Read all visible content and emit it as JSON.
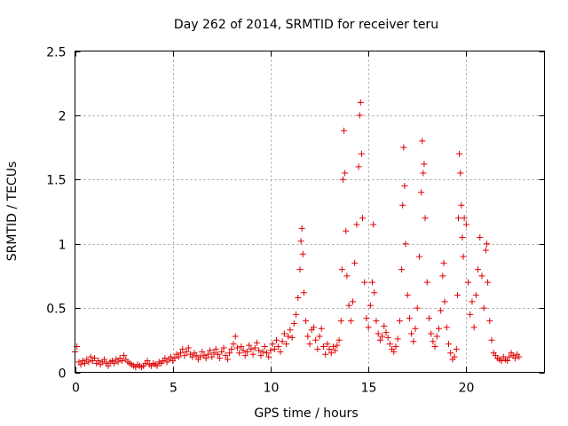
{
  "chart_data": {
    "type": "scatter",
    "title": "Day 262 of 2014, SRMTID for receiver teru",
    "xlabel": "GPS time / hours",
    "ylabel": "SRMTID / TECUs",
    "xlim": [
      0,
      24
    ],
    "ylim": [
      0,
      2.5
    ],
    "xticks": [
      0,
      5,
      10,
      15,
      20
    ],
    "xtick_labels": [
      "0",
      "5",
      "10",
      "15",
      "20"
    ],
    "yticks": [
      0,
      0.5,
      1,
      1.5,
      2,
      2.5
    ],
    "ytick_labels": [
      "0",
      "0.5",
      "1",
      "1.5",
      "2",
      "2.5"
    ],
    "grid": true,
    "marker": "plus",
    "marker_color": "#e00000",
    "series": [
      {
        "name": "SRMTID teru",
        "points": [
          [
            0.0,
            0.16
          ],
          [
            0.1,
            0.2
          ],
          [
            0.2,
            0.08
          ],
          [
            0.3,
            0.06
          ],
          [
            0.4,
            0.09
          ],
          [
            0.5,
            0.07
          ],
          [
            0.6,
            0.1
          ],
          [
            0.7,
            0.08
          ],
          [
            0.8,
            0.12
          ],
          [
            0.9,
            0.09
          ],
          [
            1.0,
            0.11
          ],
          [
            1.1,
            0.07
          ],
          [
            1.2,
            0.09
          ],
          [
            1.3,
            0.06
          ],
          [
            1.4,
            0.08
          ],
          [
            1.5,
            0.1
          ],
          [
            1.6,
            0.07
          ],
          [
            1.7,
            0.05
          ],
          [
            1.8,
            0.08
          ],
          [
            1.9,
            0.09
          ],
          [
            2.0,
            0.07
          ],
          [
            2.1,
            0.1
          ],
          [
            2.2,
            0.08
          ],
          [
            2.3,
            0.11
          ],
          [
            2.4,
            0.09
          ],
          [
            2.5,
            0.13
          ],
          [
            2.6,
            0.1
          ],
          [
            2.7,
            0.08
          ],
          [
            2.8,
            0.07
          ],
          [
            2.9,
            0.06
          ],
          [
            3.0,
            0.05
          ],
          [
            3.1,
            0.04
          ],
          [
            3.2,
            0.06
          ],
          [
            3.3,
            0.05
          ],
          [
            3.4,
            0.04
          ],
          [
            3.5,
            0.05
          ],
          [
            3.6,
            0.07
          ],
          [
            3.7,
            0.09
          ],
          [
            3.8,
            0.06
          ],
          [
            3.9,
            0.05
          ],
          [
            4.0,
            0.07
          ],
          [
            4.1,
            0.06
          ],
          [
            4.2,
            0.05
          ],
          [
            4.3,
            0.08
          ],
          [
            4.4,
            0.07
          ],
          [
            4.5,
            0.09
          ],
          [
            4.6,
            0.11
          ],
          [
            4.7,
            0.08
          ],
          [
            4.8,
            0.1
          ],
          [
            4.9,
            0.12
          ],
          [
            5.0,
            0.09
          ],
          [
            5.1,
            0.11
          ],
          [
            5.2,
            0.14
          ],
          [
            5.3,
            0.12
          ],
          [
            5.4,
            0.15
          ],
          [
            5.5,
            0.18
          ],
          [
            5.6,
            0.13
          ],
          [
            5.7,
            0.16
          ],
          [
            5.8,
            0.19
          ],
          [
            5.9,
            0.14
          ],
          [
            6.0,
            0.12
          ],
          [
            6.1,
            0.15
          ],
          [
            6.2,
            0.13
          ],
          [
            6.3,
            0.1
          ],
          [
            6.4,
            0.12
          ],
          [
            6.5,
            0.16
          ],
          [
            6.6,
            0.13
          ],
          [
            6.7,
            0.11
          ],
          [
            6.8,
            0.14
          ],
          [
            6.9,
            0.17
          ],
          [
            7.0,
            0.12
          ],
          [
            7.1,
            0.15
          ],
          [
            7.2,
            0.18
          ],
          [
            7.3,
            0.14
          ],
          [
            7.4,
            0.11
          ],
          [
            7.5,
            0.16
          ],
          [
            7.6,
            0.19
          ],
          [
            7.7,
            0.13
          ],
          [
            7.8,
            0.1
          ],
          [
            7.9,
            0.15
          ],
          [
            8.0,
            0.18
          ],
          [
            8.1,
            0.22
          ],
          [
            8.2,
            0.28
          ],
          [
            8.3,
            0.19
          ],
          [
            8.4,
            0.15
          ],
          [
            8.5,
            0.2
          ],
          [
            8.6,
            0.17
          ],
          [
            8.7,
            0.13
          ],
          [
            8.8,
            0.16
          ],
          [
            8.9,
            0.21
          ],
          [
            9.0,
            0.18
          ],
          [
            9.1,
            0.14
          ],
          [
            9.2,
            0.19
          ],
          [
            9.3,
            0.23
          ],
          [
            9.4,
            0.17
          ],
          [
            9.5,
            0.13
          ],
          [
            9.6,
            0.16
          ],
          [
            9.7,
            0.2
          ],
          [
            9.8,
            0.15
          ],
          [
            9.9,
            0.12
          ],
          [
            10.0,
            0.17
          ],
          [
            10.1,
            0.22
          ],
          [
            10.2,
            0.18
          ],
          [
            10.3,
            0.25
          ],
          [
            10.4,
            0.2
          ],
          [
            10.5,
            0.16
          ],
          [
            10.6,
            0.24
          ],
          [
            10.7,
            0.3
          ],
          [
            10.8,
            0.22
          ],
          [
            10.9,
            0.28
          ],
          [
            11.0,
            0.33
          ],
          [
            11.1,
            0.27
          ],
          [
            11.2,
            0.38
          ],
          [
            11.3,
            0.45
          ],
          [
            11.4,
            0.58
          ],
          [
            11.5,
            0.8
          ],
          [
            11.55,
            1.02
          ],
          [
            11.6,
            1.12
          ],
          [
            11.65,
            0.92
          ],
          [
            11.7,
            0.62
          ],
          [
            11.8,
            0.4
          ],
          [
            11.9,
            0.28
          ],
          [
            12.0,
            0.22
          ],
          [
            12.1,
            0.33
          ],
          [
            12.2,
            0.35
          ],
          [
            12.3,
            0.25
          ],
          [
            12.4,
            0.18
          ],
          [
            12.5,
            0.28
          ],
          [
            12.6,
            0.34
          ],
          [
            12.7,
            0.2
          ],
          [
            12.8,
            0.14
          ],
          [
            12.9,
            0.22
          ],
          [
            13.0,
            0.18
          ],
          [
            13.1,
            0.15
          ],
          [
            13.2,
            0.2
          ],
          [
            13.3,
            0.17
          ],
          [
            13.4,
            0.21
          ],
          [
            13.5,
            0.25
          ],
          [
            13.6,
            0.4
          ],
          [
            13.65,
            0.8
          ],
          [
            13.7,
            1.5
          ],
          [
            13.75,
            1.88
          ],
          [
            13.8,
            1.55
          ],
          [
            13.85,
            1.1
          ],
          [
            13.9,
            0.75
          ],
          [
            14.0,
            0.52
          ],
          [
            14.1,
            0.4
          ],
          [
            14.2,
            0.55
          ],
          [
            14.3,
            0.85
          ],
          [
            14.4,
            1.15
          ],
          [
            14.5,
            1.6
          ],
          [
            14.55,
            2.0
          ],
          [
            14.6,
            2.1
          ],
          [
            14.65,
            1.7
          ],
          [
            14.7,
            1.2
          ],
          [
            14.8,
            0.7
          ],
          [
            14.9,
            0.42
          ],
          [
            15.0,
            0.35
          ],
          [
            15.1,
            0.52
          ],
          [
            15.2,
            0.7
          ],
          [
            15.25,
            1.15
          ],
          [
            15.3,
            0.62
          ],
          [
            15.4,
            0.4
          ],
          [
            15.5,
            0.3
          ],
          [
            15.6,
            0.25
          ],
          [
            15.7,
            0.28
          ],
          [
            15.8,
            0.36
          ],
          [
            15.9,
            0.31
          ],
          [
            16.0,
            0.27
          ],
          [
            16.1,
            0.22
          ],
          [
            16.2,
            0.18
          ],
          [
            16.3,
            0.16
          ],
          [
            16.4,
            0.2
          ],
          [
            16.5,
            0.26
          ],
          [
            16.6,
            0.4
          ],
          [
            16.7,
            0.8
          ],
          [
            16.75,
            1.3
          ],
          [
            16.8,
            1.75
          ],
          [
            16.85,
            1.45
          ],
          [
            16.9,
            1.0
          ],
          [
            17.0,
            0.6
          ],
          [
            17.1,
            0.42
          ],
          [
            17.2,
            0.3
          ],
          [
            17.3,
            0.24
          ],
          [
            17.4,
            0.34
          ],
          [
            17.5,
            0.5
          ],
          [
            17.6,
            0.9
          ],
          [
            17.7,
            1.4
          ],
          [
            17.75,
            1.8
          ],
          [
            17.8,
            1.55
          ],
          [
            17.85,
            1.62
          ],
          [
            17.9,
            1.2
          ],
          [
            18.0,
            0.7
          ],
          [
            18.1,
            0.42
          ],
          [
            18.2,
            0.3
          ],
          [
            18.3,
            0.24
          ],
          [
            18.4,
            0.2
          ],
          [
            18.5,
            0.28
          ],
          [
            18.6,
            0.34
          ],
          [
            18.7,
            0.48
          ],
          [
            18.8,
            0.75
          ],
          [
            18.85,
            0.85
          ],
          [
            18.9,
            0.55
          ],
          [
            19.0,
            0.35
          ],
          [
            19.1,
            0.22
          ],
          [
            19.2,
            0.15
          ],
          [
            19.3,
            0.1
          ],
          [
            19.4,
            0.12
          ],
          [
            19.5,
            0.18
          ],
          [
            19.55,
            0.6
          ],
          [
            19.6,
            1.2
          ],
          [
            19.65,
            1.7
          ],
          [
            19.7,
            1.55
          ],
          [
            19.75,
            1.3
          ],
          [
            19.8,
            1.05
          ],
          [
            19.85,
            0.9
          ],
          [
            19.9,
            1.2
          ],
          [
            20.0,
            1.15
          ],
          [
            20.1,
            0.7
          ],
          [
            20.2,
            0.45
          ],
          [
            20.3,
            0.55
          ],
          [
            20.4,
            0.35
          ],
          [
            20.5,
            0.6
          ],
          [
            20.6,
            0.8
          ],
          [
            20.7,
            1.05
          ],
          [
            20.8,
            0.75
          ],
          [
            20.9,
            0.5
          ],
          [
            21.0,
            0.95
          ],
          [
            21.05,
            1.0
          ],
          [
            21.1,
            0.7
          ],
          [
            21.2,
            0.4
          ],
          [
            21.3,
            0.25
          ],
          [
            21.4,
            0.15
          ],
          [
            21.5,
            0.13
          ],
          [
            21.6,
            0.11
          ],
          [
            21.7,
            0.1
          ],
          [
            21.8,
            0.09
          ],
          [
            21.9,
            0.12
          ],
          [
            22.0,
            0.1
          ],
          [
            22.1,
            0.09
          ],
          [
            22.2,
            0.12
          ],
          [
            22.3,
            0.15
          ],
          [
            22.4,
            0.13
          ],
          [
            22.5,
            0.11
          ],
          [
            22.6,
            0.14
          ],
          [
            22.7,
            0.12
          ]
        ]
      }
    ]
  }
}
